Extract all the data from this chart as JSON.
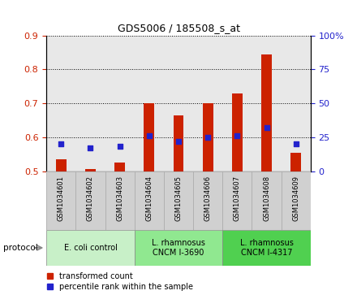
{
  "title": "GDS5006 / 185508_s_at",
  "samples": [
    "GSM1034601",
    "GSM1034602",
    "GSM1034603",
    "GSM1034604",
    "GSM1034605",
    "GSM1034606",
    "GSM1034607",
    "GSM1034608",
    "GSM1034609"
  ],
  "red_values": [
    0.534,
    0.505,
    0.525,
    0.7,
    0.665,
    0.7,
    0.73,
    0.845,
    0.555
  ],
  "blue_values_pct": [
    20,
    17,
    18,
    26,
    22,
    25,
    26,
    32,
    20
  ],
  "ylim_left": [
    0.5,
    0.9
  ],
  "ylim_right": [
    0,
    100
  ],
  "yticks_left": [
    0.5,
    0.6,
    0.7,
    0.8,
    0.9
  ],
  "yticks_right": [
    0,
    25,
    50,
    75,
    100
  ],
  "yticklabels_right": [
    "0",
    "25",
    "50",
    "75",
    "100%"
  ],
  "groups": [
    {
      "label": "E. coli control",
      "indices": [
        0,
        1,
        2
      ],
      "color": "#c8f0c8"
    },
    {
      "label": "L. rhamnosus\nCNCM I-3690",
      "indices": [
        3,
        4,
        5
      ],
      "color": "#90e890"
    },
    {
      "label": "L. rhamnosus\nCNCM I-4317",
      "indices": [
        6,
        7,
        8
      ],
      "color": "#50d050"
    }
  ],
  "bar_color": "#cc2200",
  "dot_color": "#2222cc",
  "background_color": "#ffffff",
  "plot_bg_color": "#e8e8e8",
  "sample_bg_color": "#d0d0d0",
  "tick_label_color_left": "#cc2200",
  "tick_label_color_right": "#2222cc",
  "legend_red": "transformed count",
  "legend_blue": "percentile rank within the sample",
  "protocol_label": "protocol",
  "bar_bottom": 0.5,
  "bar_width": 0.35,
  "dot_size": 18,
  "dot_marker": "s"
}
